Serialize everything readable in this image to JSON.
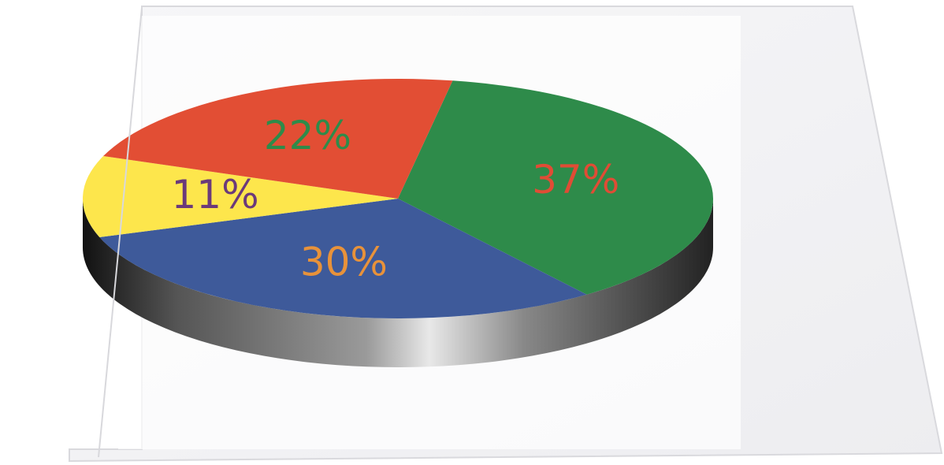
{
  "chart_data": {
    "type": "pie",
    "style": "3d",
    "slices": [
      {
        "label": "37%",
        "value": 37,
        "color": "#2e8b4a",
        "label_color": "#e04c35"
      },
      {
        "label": "30%",
        "value": 30,
        "color": "#3e5a9a",
        "label_color": "#e8923a"
      },
      {
        "label": "11%",
        "value": 11,
        "color": "#fde64c",
        "label_color": "#6b3a7a"
      },
      {
        "label": "22%",
        "value": 22,
        "color": "#e24e34",
        "label_color": "#2e8b4a"
      }
    ]
  }
}
